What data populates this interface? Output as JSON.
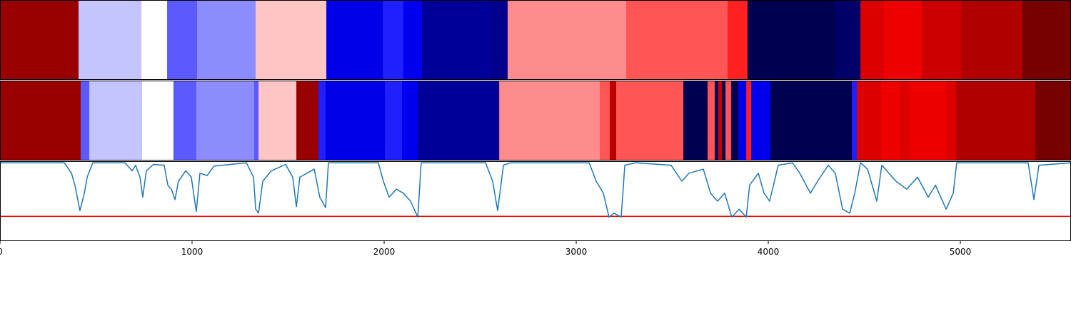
{
  "chart_data": [
    {
      "type": "strip",
      "xlim": [
        0,
        5576
      ],
      "edges": [
        0,
        409,
        736,
        870,
        1026,
        1331,
        1699,
        1993,
        2100,
        2197,
        2550,
        2643,
        3260,
        3788,
        3892,
        4349,
        4480,
        4602,
        4799,
        5004,
        5323,
        5576
      ],
      "colors": [
        "#990000",
        "#c4c4ff",
        "#ffffff",
        "#5a5aff",
        "#8c8cff",
        "#ffc4c4",
        "#0000e8",
        "#2020ff",
        "#0000ee",
        "#000099",
        "#00008c",
        "#ff8c8c",
        "#ff5555",
        "#ff2020",
        "#000050",
        "#000068",
        "#dd0000",
        "#ee0000",
        "#cc0000",
        "#b00000",
        "#770000"
      ]
    },
    {
      "type": "strip",
      "xlim": [
        0,
        5576
      ],
      "edges": [
        0,
        420,
        465,
        740,
        903,
        1022,
        1323,
        1346,
        1543,
        1658,
        1695,
        2004,
        2093,
        2175,
        2599,
        3123,
        3175,
        3208,
        3238,
        3558,
        3684,
        3721,
        3740,
        3758,
        3777,
        3807,
        3844,
        3885,
        3911,
        4011,
        4435,
        4461,
        4587,
        4684,
        4736,
        4803,
        4926,
        4978,
        5390,
        5576
      ],
      "colors": [
        "#990000",
        "#5a5aff",
        "#c4c4ff",
        "#ffffff",
        "#5a5aff",
        "#8c8cff",
        "#5a5aff",
        "#ffc4c4",
        "#990000",
        "#2020ff",
        "#0000e8",
        "#2020ff",
        "#0000ee",
        "#000099",
        "#ff8c8c",
        "#ff5555",
        "#bb0000",
        "#ff5555",
        "#ff5555",
        "#000050",
        "#ff5555",
        "#000050",
        "#cc0000",
        "#000050",
        "#ff5555",
        "#000050",
        "#0000e8",
        "#ff2020",
        "#0000ee",
        "#000050",
        "#2020ff",
        "#dd0000",
        "#ee0000",
        "#dd0000",
        "#ee0000",
        "#ee0000",
        "#dd0000",
        "#b00000",
        "#770000"
      ]
    },
    {
      "type": "line",
      "xlim": [
        0,
        5576
      ],
      "ylim": [
        0,
        1
      ],
      "xticks": [
        0,
        1000,
        2000,
        3000,
        4000,
        5000
      ],
      "color": "#1f77b4",
      "threshold": 0.31,
      "threshold_color": "#ff0000",
      "x": [
        0,
        335,
        372,
        390,
        416,
        439,
        454,
        483,
        651,
        688,
        706,
        729,
        743,
        762,
        799,
        855,
        874,
        892,
        911,
        929,
        967,
        996,
        1022,
        1041,
        1078,
        1115,
        1283,
        1320,
        1331,
        1346,
        1368,
        1413,
        1487,
        1524,
        1543,
        1561,
        1636,
        1665,
        1695,
        1710,
        1970,
        1996,
        2026,
        2063,
        2100,
        2138,
        2175,
        2193,
        2528,
        2565,
        2591,
        2621,
        2658,
        3067,
        3104,
        3141,
        3171,
        3197,
        3234,
        3253,
        3309,
        3494,
        3550,
        3587,
        3662,
        3699,
        3736,
        3773,
        3810,
        3848,
        3885,
        3903,
        3948,
        3978,
        4007,
        4052,
        4126,
        4164,
        4219,
        4257,
        4312,
        4349,
        4387,
        4424,
        4450,
        4480,
        4517,
        4565,
        4591,
        4665,
        4721,
        4777,
        4833,
        4870,
        4926,
        4963,
        4981,
        5353,
        5383,
        5409,
        5576
      ],
      "values": [
        0.98,
        0.98,
        0.85,
        0.7,
        0.38,
        0.6,
        0.8,
        0.98,
        0.98,
        0.88,
        0.95,
        0.8,
        0.55,
        0.88,
        0.96,
        0.95,
        0.7,
        0.65,
        0.52,
        0.75,
        0.88,
        0.8,
        0.37,
        0.85,
        0.82,
        0.94,
        0.98,
        0.8,
        0.4,
        0.35,
        0.75,
        0.88,
        0.96,
        0.8,
        0.43,
        0.8,
        0.9,
        0.55,
        0.42,
        0.98,
        0.98,
        0.75,
        0.55,
        0.65,
        0.6,
        0.5,
        0.3,
        0.98,
        0.98,
        0.75,
        0.38,
        0.95,
        0.98,
        0.98,
        0.75,
        0.6,
        0.3,
        0.35,
        0.3,
        0.95,
        0.98,
        0.95,
        0.75,
        0.85,
        0.9,
        0.6,
        0.5,
        0.6,
        0.3,
        0.4,
        0.3,
        0.7,
        0.85,
        0.6,
        0.5,
        0.95,
        0.98,
        0.85,
        0.6,
        0.75,
        0.95,
        0.85,
        0.4,
        0.35,
        0.6,
        0.98,
        0.9,
        0.5,
        0.95,
        0.75,
        0.65,
        0.8,
        0.55,
        0.7,
        0.4,
        0.6,
        0.98,
        0.98,
        0.52,
        0.95,
        0.98
      ]
    }
  ]
}
